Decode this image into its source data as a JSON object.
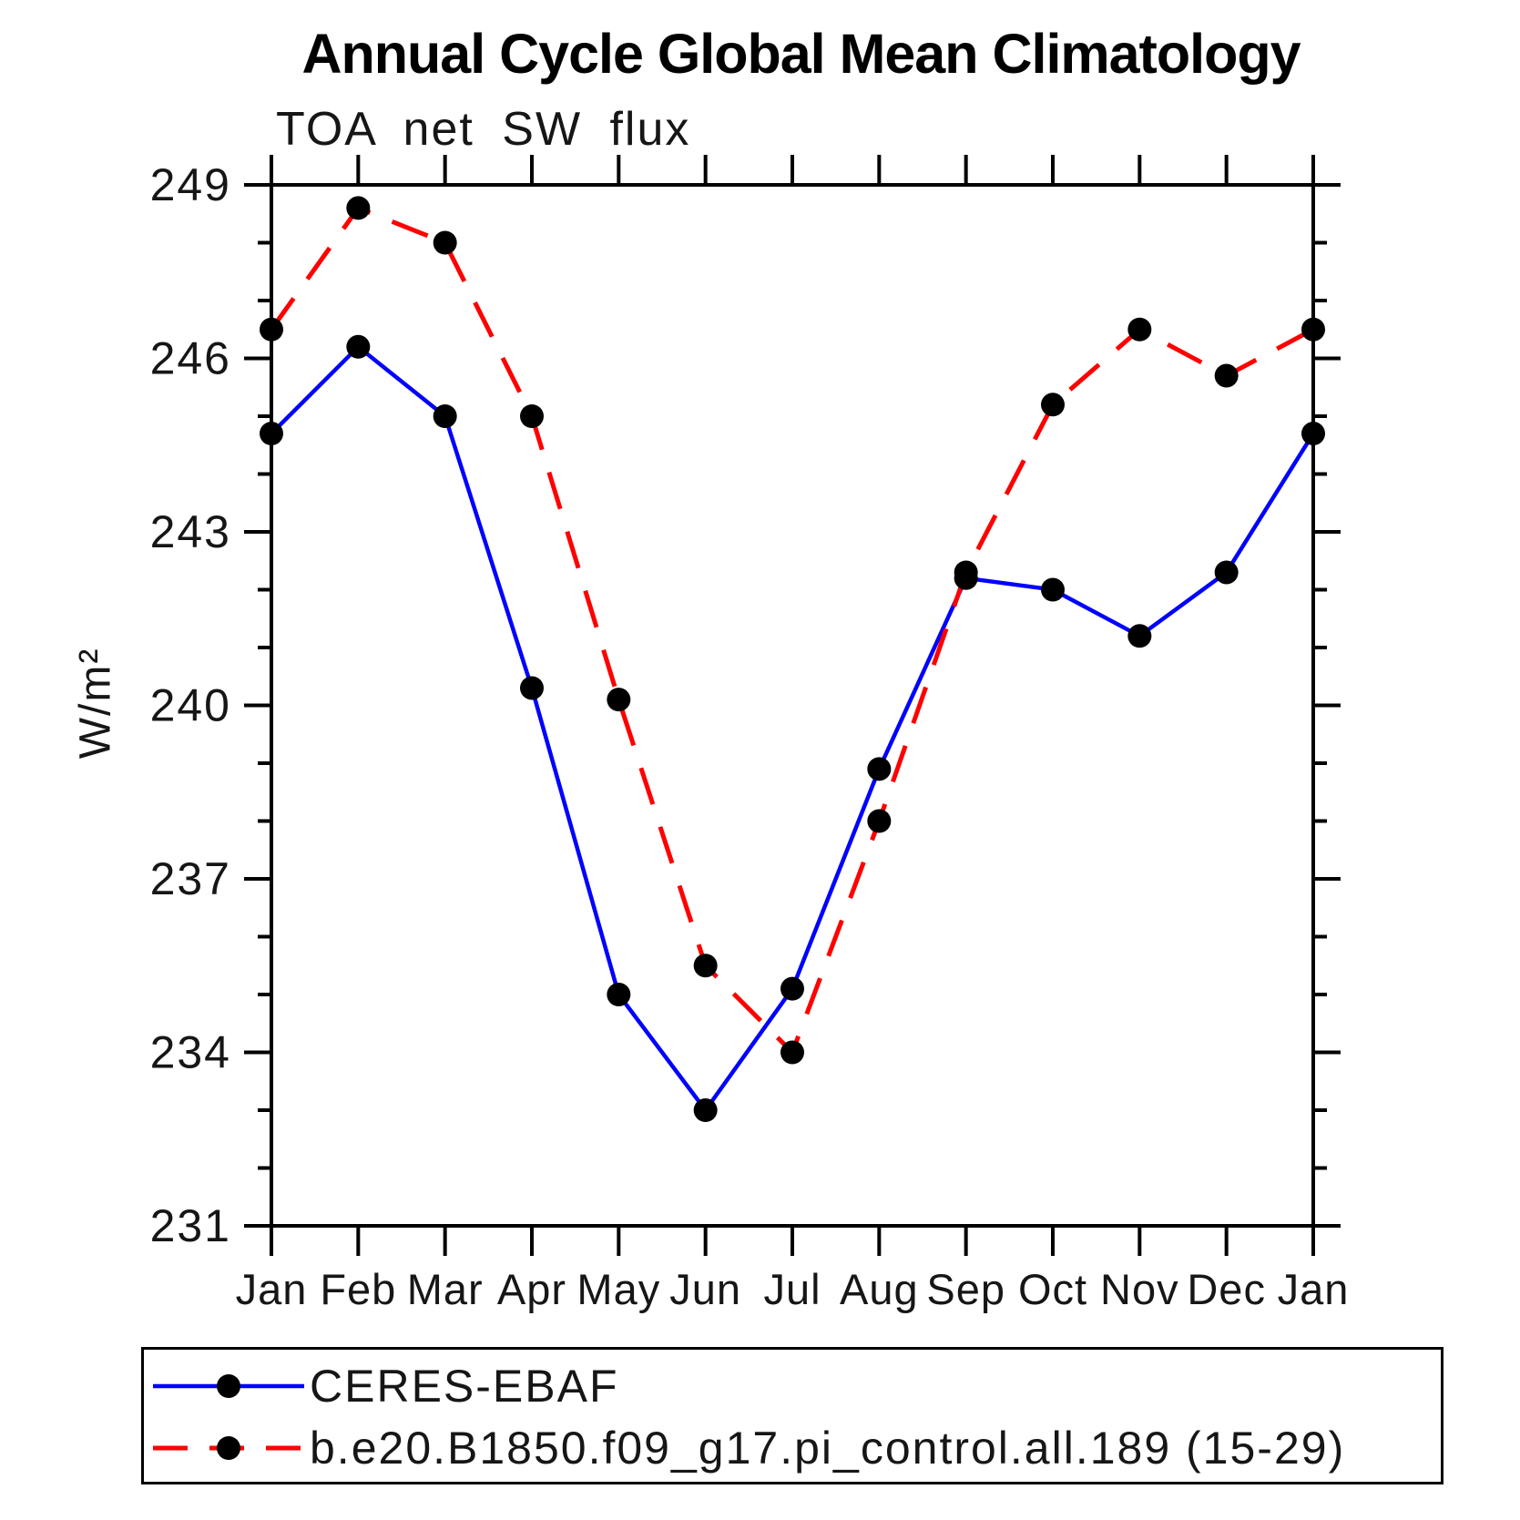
{
  "title": "Annual Cycle Global Mean Climatology",
  "chart_data": {
    "type": "line",
    "title": "Annual Cycle Global Mean Climatology",
    "subtitle": "TOA net SW flux",
    "ylabel": "W/m²",
    "xlabel": "",
    "categories": [
      "Jan",
      "Feb",
      "Mar",
      "Apr",
      "May",
      "Jun",
      "Jul",
      "Aug",
      "Sep",
      "Oct",
      "Nov",
      "Dec",
      "Jan"
    ],
    "series": [
      {
        "name": "CERES-EBAF",
        "color": "#0000ff",
        "line_style": "solid",
        "marker": "filled-circle",
        "marker_color": "#000000",
        "values": [
          244.7,
          246.2,
          245.0,
          240.3,
          235.0,
          233.0,
          235.1,
          238.9,
          242.2,
          242.0,
          241.2,
          242.3,
          244.7
        ]
      },
      {
        "name": "b.e20.B1850.f09_g17.pi_control.all.189 (15-29)",
        "color": "#ff0000",
        "line_style": "dashed",
        "marker": "filled-circle",
        "marker_color": "#000000",
        "values": [
          246.5,
          248.6,
          248.0,
          245.0,
          240.1,
          235.5,
          234.0,
          238.0,
          242.3,
          245.2,
          246.5,
          245.7,
          246.5
        ]
      }
    ],
    "ylim": [
      231,
      249
    ],
    "ytick_major_step": 3,
    "ytick_minor_step": 1,
    "ytick_major_labels": [
      "231",
      "234",
      "237",
      "240",
      "243",
      "246",
      "249"
    ],
    "grid": false,
    "legend_position": "bottom-left-box"
  }
}
